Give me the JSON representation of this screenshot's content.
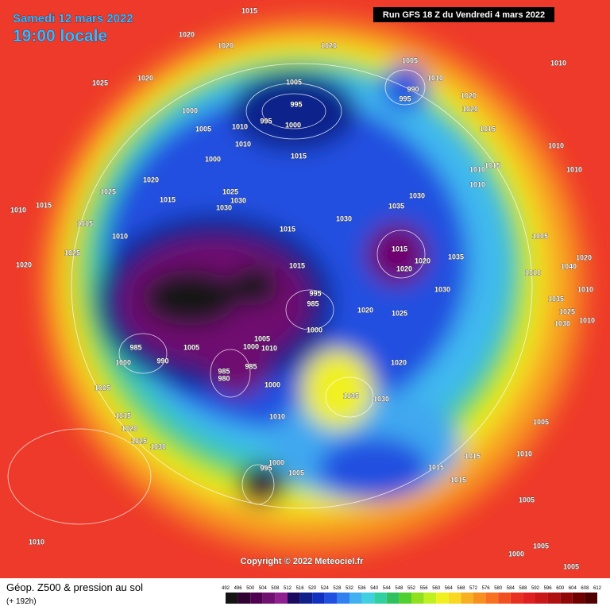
{
  "header": {
    "date": "Samedi 12 mars 2022",
    "time": "19:00 locale",
    "run": "Run GFS 18 Z du Vendredi 4 mars 2022"
  },
  "isobar_labels": [
    1015,
    1020,
    1020,
    1020,
    1025,
    1020,
    1005,
    1010,
    990,
    995,
    1010,
    1005,
    995,
    995,
    1000,
    1000,
    1005,
    1010,
    1010,
    1015,
    1020,
    1020,
    1015,
    1010,
    1010,
    1010,
    1015,
    1010,
    1000,
    1020,
    1025,
    1025,
    1030,
    1030,
    1015,
    1010,
    1015,
    1015,
    1010,
    1025,
    1020,
    1030,
    1035,
    1030,
    1015,
    1015,
    1020,
    1035,
    1020,
    1005,
    1015,
    995,
    985,
    1030,
    1010,
    1020,
    1025,
    1000,
    985,
    1005,
    1005,
    1000,
    1010,
    990,
    1000,
    985,
    980,
    985,
    1020,
    1000,
    1005,
    1035,
    1030,
    1010,
    1015,
    1020,
    1025,
    1030,
    1005,
    995,
    1000,
    1005,
    1015,
    1015,
    1010,
    1015,
    1005,
    1010,
    1005,
    1000,
    1005,
    1010,
    1020,
    1035,
    1025,
    1030,
    1010,
    1040
  ],
  "copyright": "Copyright © 2022 Meteociel.fr",
  "footer": {
    "title": "Géop. Z500 & pression au sol",
    "lead": "(+ 192h)"
  },
  "colorbar": {
    "ticks": [
      492,
      496,
      500,
      504,
      508,
      512,
      516,
      520,
      524,
      528,
      532,
      536,
      540,
      544,
      548,
      552,
      556,
      560,
      564,
      568,
      572,
      576,
      580,
      584,
      588,
      592,
      596,
      600,
      604,
      608,
      612
    ],
    "colors": [
      "#141414",
      "#300030",
      "#500050",
      "#701070",
      "#902090",
      "#1a0a60",
      "#10208a",
      "#1030c0",
      "#2050e0",
      "#3080f0",
      "#40b0f0",
      "#40d0e0",
      "#30d0a0",
      "#30c060",
      "#50d030",
      "#90e020",
      "#c0f020",
      "#f0f020",
      "#f8d820",
      "#f8b020",
      "#f89020",
      "#f87020",
      "#f05020",
      "#e83020",
      "#e02020",
      "#c81818",
      "#b01010",
      "#900808",
      "#700000",
      "#500000"
    ]
  }
}
